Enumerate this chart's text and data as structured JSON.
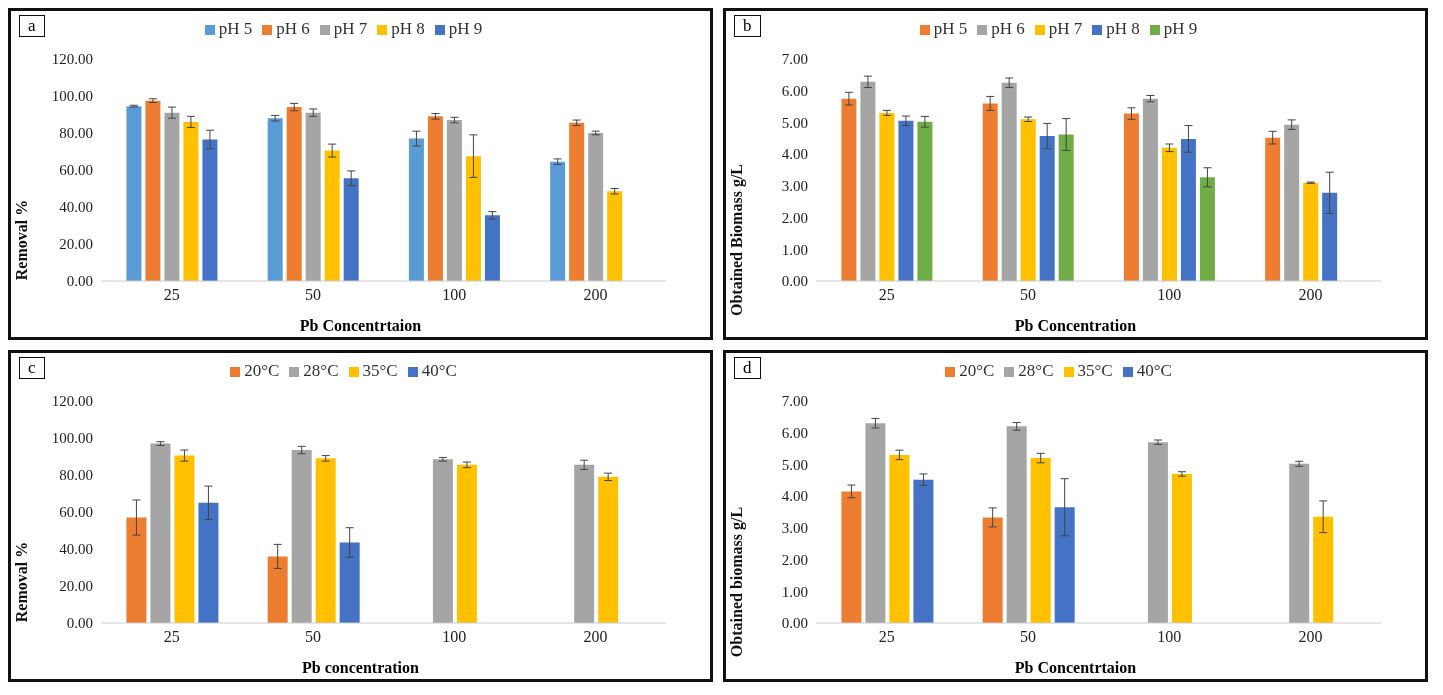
{
  "chart_data": [
    {
      "type": "bar",
      "title": "a",
      "xlabel": "Pb Concentrtaion",
      "ylabel": "Removal %",
      "categories": [
        "25",
        "50",
        "100",
        "200"
      ],
      "ylim": [
        0,
        120
      ],
      "yticks": [
        {
          "value": 0,
          "label": "0.00"
        },
        {
          "value": 20,
          "label": "20.00"
        },
        {
          "value": 40,
          "label": "40.00"
        },
        {
          "value": 60,
          "label": "60.00"
        },
        {
          "value": 80,
          "label": "80.00"
        },
        {
          "value": 100,
          "label": "100.00"
        },
        {
          "value": 120,
          "label": "120.00"
        }
      ],
      "grid": false,
      "legend": "top",
      "series": [
        {
          "name": "pH 5",
          "color": "#5b9bd5",
          "values": [
            94.5,
            88,
            77,
            64.5
          ],
          "errors": [
            0.5,
            1.5,
            4,
            1.5
          ]
        },
        {
          "name": "pH 6",
          "color": "#ed7d31",
          "values": [
            97.5,
            94,
            89,
            85.5
          ],
          "errors": [
            1,
            2,
            1.5,
            1.5
          ]
        },
        {
          "name": "pH 7",
          "color": "#a5a5a5",
          "values": [
            91,
            91,
            87,
            80
          ],
          "errors": [
            3,
            2,
            1.5,
            1
          ]
        },
        {
          "name": "pH 8",
          "color": "#ffc000",
          "values": [
            86,
            70.5,
            67.5,
            48.5
          ],
          "errors": [
            3,
            3.5,
            11.5,
            1.5
          ]
        },
        {
          "name": "pH 9",
          "color": "#4472c4",
          "values": [
            76.5,
            55.5,
            35.5,
            null
          ],
          "errors": [
            5,
            4,
            2,
            null
          ]
        }
      ]
    },
    {
      "type": "bar",
      "title": "b",
      "xlabel": "Pb Concentration",
      "ylabel": "Obtained Biomass g/L",
      "categories": [
        "25",
        "50",
        "100",
        "200"
      ],
      "ylim": [
        0,
        7
      ],
      "yticks": [
        {
          "value": 0,
          "label": "0.00"
        },
        {
          "value": 1,
          "label": "1.00"
        },
        {
          "value": 2,
          "label": "2.00"
        },
        {
          "value": 3,
          "label": "3.00"
        },
        {
          "value": 4,
          "label": "4.00"
        },
        {
          "value": 5,
          "label": "5.00"
        },
        {
          "value": 6,
          "label": "6.00"
        },
        {
          "value": 7,
          "label": "7.00"
        }
      ],
      "grid": false,
      "legend": "top",
      "series": [
        {
          "name": "pH 5",
          "color": "#ed7d31",
          "values": [
            5.75,
            5.6,
            5.28,
            4.52
          ],
          "errors": [
            0.2,
            0.22,
            0.18,
            0.2
          ]
        },
        {
          "name": "pH 6",
          "color": "#a5a5a5",
          "values": [
            6.28,
            6.25,
            5.75,
            4.93
          ],
          "errors": [
            0.18,
            0.15,
            0.1,
            0.15
          ]
        },
        {
          "name": "pH 7",
          "color": "#ffc000",
          "values": [
            5.3,
            5.1,
            4.2,
            3.1
          ],
          "errors": [
            0.08,
            0.07,
            0.12,
            0.02
          ]
        },
        {
          "name": "pH 8",
          "color": "#4472c4",
          "values": [
            5.05,
            4.57,
            4.48,
            2.78
          ],
          "errors": [
            0.15,
            0.4,
            0.42,
            0.65
          ]
        },
        {
          "name": "pH 9",
          "color": "#70ad47",
          "values": [
            5.02,
            4.62,
            3.27,
            null
          ],
          "errors": [
            0.17,
            0.5,
            0.3,
            null
          ]
        }
      ]
    },
    {
      "type": "bar",
      "title": "c",
      "xlabel": "Pb concentration",
      "ylabel": "Removal %",
      "categories": [
        "25",
        "50",
        "100",
        "200"
      ],
      "ylim": [
        0,
        120
      ],
      "yticks": [
        {
          "value": 0,
          "label": "0.00"
        },
        {
          "value": 20,
          "label": "20.00"
        },
        {
          "value": 40,
          "label": "40.00"
        },
        {
          "value": 60,
          "label": "60.00"
        },
        {
          "value": 80,
          "label": "80.00"
        },
        {
          "value": 100,
          "label": "100.00"
        },
        {
          "value": 120,
          "label": "120.00"
        }
      ],
      "grid": false,
      "legend": "top",
      "series": [
        {
          "name": "20°C",
          "color": "#ed7d31",
          "values": [
            57,
            36,
            null,
            null
          ],
          "errors": [
            9.5,
            6.5,
            null,
            null
          ]
        },
        {
          "name": "28°C",
          "color": "#a5a5a5",
          "values": [
            97,
            93.5,
            88.5,
            85.5
          ],
          "errors": [
            1,
            2,
            1,
            2.5
          ]
        },
        {
          "name": "35°C",
          "color": "#ffc000",
          "values": [
            90.5,
            89,
            85.5,
            79
          ],
          "errors": [
            3,
            1.5,
            1.5,
            2
          ]
        },
        {
          "name": "40°C",
          "color": "#4472c4",
          "values": [
            65,
            43.5,
            null,
            null
          ],
          "errors": [
            9,
            8,
            null,
            null
          ]
        }
      ]
    },
    {
      "type": "bar",
      "title": "d",
      "xlabel": "Pb Concentrtaion",
      "ylabel": "Obtained biomass g/L",
      "categories": [
        "25",
        "50",
        "100",
        "200"
      ],
      "ylim": [
        0,
        7
      ],
      "yticks": [
        {
          "value": 0,
          "label": "0.00"
        },
        {
          "value": 1,
          "label": "1.00"
        },
        {
          "value": 2,
          "label": "2.00"
        },
        {
          "value": 3,
          "label": "3.00"
        },
        {
          "value": 4,
          "label": "4.00"
        },
        {
          "value": 5,
          "label": "5.00"
        },
        {
          "value": 6,
          "label": "6.00"
        },
        {
          "value": 7,
          "label": "7.00"
        }
      ],
      "grid": false,
      "legend": "top",
      "series": [
        {
          "name": "20°C",
          "color": "#ed7d31",
          "values": [
            4.15,
            3.33,
            null,
            null
          ],
          "errors": [
            0.2,
            0.3,
            null,
            null
          ]
        },
        {
          "name": "28°C",
          "color": "#a5a5a5",
          "values": [
            6.3,
            6.2,
            5.7,
            5.02
          ],
          "errors": [
            0.15,
            0.12,
            0.07,
            0.08
          ]
        },
        {
          "name": "35°C",
          "color": "#ffc000",
          "values": [
            5.3,
            5.2,
            4.7,
            3.35
          ],
          "errors": [
            0.15,
            0.15,
            0.07,
            0.5
          ]
        },
        {
          "name": "40°C",
          "color": "#4472c4",
          "values": [
            4.52,
            3.65,
            null,
            null
          ],
          "errors": [
            0.18,
            0.9,
            null,
            null
          ]
        }
      ]
    }
  ]
}
